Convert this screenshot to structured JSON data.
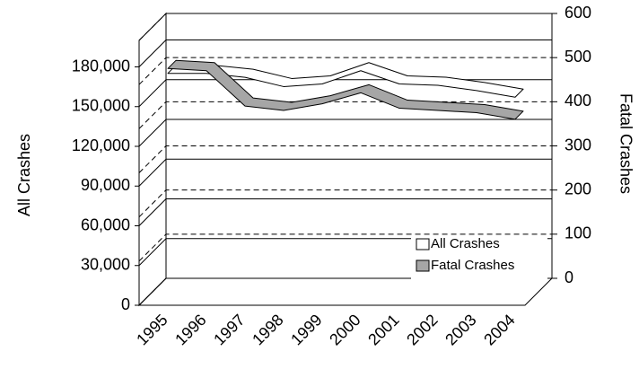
{
  "chart_data": {
    "type": "line3d",
    "categories": [
      "1995",
      "1996",
      "1997",
      "1998",
      "1999",
      "2000",
      "2001",
      "2002",
      "2003",
      "2004"
    ],
    "series": [
      {
        "name": "All Crashes",
        "color": "#ffffff",
        "values": [
          168000,
          168000,
          165000,
          158000,
          160000,
          170000,
          160000,
          159000,
          155000,
          150000
        ]
      },
      {
        "name": "Fatal Crashes",
        "color": "#a6a6a6",
        "axis": "y2",
        "values": [
          515,
          510,
          430,
          420,
          435,
          460,
          425,
          420,
          415,
          400
        ]
      }
    ],
    "ylabel": "All Crashes",
    "y2label": "Fatal Crashes",
    "ylim": [
      0,
      200000
    ],
    "yticks": [
      0,
      {
        "value": 30000,
        "label": "30,000"
      },
      {
        "value": 60000,
        "label": "60,000"
      },
      {
        "value": 90000,
        "label": "90,000"
      },
      {
        "value": 120000,
        "label": "120,000"
      },
      {
        "value": 150000,
        "label": "150,000"
      },
      {
        "value": 180000,
        "label": "180,000"
      }
    ],
    "y2lim": [
      0,
      600
    ],
    "y2ticks": [
      0,
      100,
      200,
      300,
      400,
      500,
      600
    ],
    "grid": true,
    "legend": "lower right"
  }
}
